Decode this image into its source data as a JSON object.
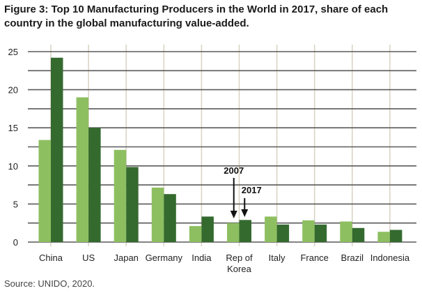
{
  "chart_data": {
    "type": "bar",
    "title": "Figure 3: Top 10 Manufacturing Producers in the World in 2017, share of each country in the global manufacturing value-added.",
    "categories": [
      "China",
      "US",
      "Japan",
      "Germany",
      "India",
      "Rep of Korea",
      "Italy",
      "France",
      "Brazil",
      "Indonesia"
    ],
    "category_lines": [
      [
        "China"
      ],
      [
        "US"
      ],
      [
        "Japan"
      ],
      [
        "Germany"
      ],
      [
        "India"
      ],
      [
        "Rep of",
        "Korea"
      ],
      [
        "Italy"
      ],
      [
        "France"
      ],
      [
        "Brazil"
      ],
      [
        "Indonesia"
      ]
    ],
    "series": [
      {
        "name": "2007",
        "color": "#8dbf60",
        "values": [
          13.4,
          19.0,
          12.1,
          7.15,
          2.1,
          2.5,
          3.35,
          2.85,
          2.7,
          1.35
        ]
      },
      {
        "name": "2017",
        "color": "#356a2f",
        "values": [
          24.2,
          15.0,
          9.85,
          6.3,
          3.35,
          2.9,
          2.3,
          2.3,
          1.85,
          1.6
        ]
      }
    ],
    "ylim": [
      0,
      25
    ],
    "yticks": [
      0,
      5,
      10,
      15,
      20,
      25
    ],
    "grid": true,
    "annotations": [
      {
        "text": "2007",
        "target": "Rep of Korea 2007"
      },
      {
        "text": "2017",
        "target": "Rep of Korea 2017"
      }
    ],
    "source": "Source: UNIDO, 2020."
  }
}
